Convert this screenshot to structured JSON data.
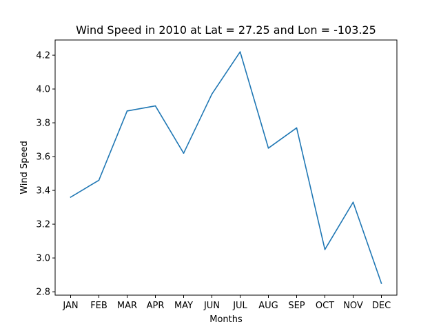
{
  "chart_data": {
    "type": "line",
    "title": "Wind Speed in 2010 at Lat = 27.25 and Lon = -103.25",
    "xlabel": "Months",
    "ylabel": "Wind Speed",
    "categories": [
      "JAN",
      "FEB",
      "MAR",
      "APR",
      "MAY",
      "JUN",
      "JUL",
      "AUG",
      "SEP",
      "OCT",
      "NOV",
      "DEC"
    ],
    "series": [
      {
        "values": [
          3.36,
          3.46,
          3.87,
          3.9,
          3.62,
          3.97,
          4.22,
          3.65,
          3.77,
          3.05,
          3.33,
          2.85
        ],
        "color": "#1f77b4"
      }
    ],
    "ylim": [
      2.78,
      4.29
    ],
    "yticks": [
      "2.8",
      "3.0",
      "3.2",
      "3.4",
      "3.6",
      "3.8",
      "4.0",
      "4.2"
    ],
    "grid": false,
    "legend": "none"
  }
}
